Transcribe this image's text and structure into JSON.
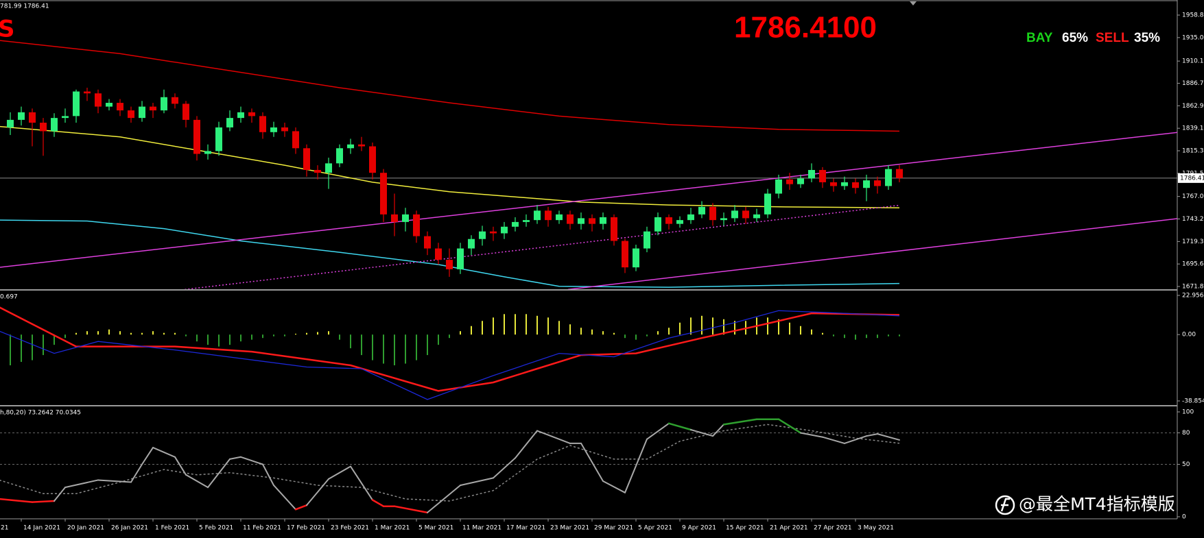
{
  "chart_data": [
    {
      "type": "candlestick",
      "header": "781.99 1786.41",
      "annotations": [
        {
          "text": "S",
          "color": "#ff0000"
        },
        {
          "text": "1786.4100",
          "color": "#ff0000"
        }
      ],
      "signals": [
        {
          "name": "BAY",
          "color": "#19d419",
          "label": "65%"
        },
        {
          "name": "SELL",
          "color": "#ff1a1a",
          "label": "35%"
        }
      ],
      "price": {
        "value": 1786.41,
        "label": "1786.41"
      },
      "bull_color": "#2df07c",
      "bear_color": "#e60000",
      "open": [
        1840,
        1848,
        1856,
        1845,
        1836,
        1850,
        1852,
        1878,
        1876,
        1862,
        1866,
        1858,
        1850,
        1862,
        1858,
        1872,
        1865,
        1848,
        1812,
        1815,
        1840,
        1850,
        1856,
        1852,
        1835,
        1840,
        1836,
        1818,
        1795,
        1792,
        1802,
        1818,
        1822,
        1820,
        1792,
        1748,
        1740,
        1748,
        1725,
        1712,
        1700,
        1690,
        1712,
        1722,
        1730,
        1728,
        1735,
        1740,
        1742,
        1752,
        1742,
        1748,
        1738,
        1744,
        1738,
        1745,
        1720,
        1692,
        1712,
        1730,
        1745,
        1738,
        1742,
        1748,
        1756,
        1742,
        1744,
        1752,
        1744,
        1748,
        1770,
        1785,
        1780,
        1786,
        1795,
        1782,
        1778,
        1782,
        1776,
        1784,
        1778,
        1796
      ],
      "high": [
        1856,
        1862,
        1860,
        1850,
        1855,
        1860,
        1880,
        1882,
        1880,
        1870,
        1870,
        1862,
        1868,
        1866,
        1880,
        1876,
        1868,
        1852,
        1822,
        1846,
        1858,
        1862,
        1860,
        1856,
        1846,
        1845,
        1840,
        1822,
        1800,
        1808,
        1822,
        1828,
        1830,
        1824,
        1796,
        1770,
        1755,
        1752,
        1730,
        1718,
        1712,
        1718,
        1726,
        1736,
        1735,
        1740,
        1745,
        1748,
        1758,
        1756,
        1752,
        1752,
        1750,
        1748,
        1750,
        1748,
        1722,
        1716,
        1735,
        1750,
        1748,
        1746,
        1755,
        1762,
        1760,
        1750,
        1758,
        1756,
        1754,
        1775,
        1790,
        1792,
        1790,
        1802,
        1798,
        1786,
        1788,
        1786,
        1790,
        1788,
        1800,
        1800
      ],
      "low": [
        1832,
        1842,
        1820,
        1810,
        1830,
        1845,
        1845,
        1868,
        1855,
        1858,
        1852,
        1845,
        1846,
        1850,
        1855,
        1860,
        1840,
        1805,
        1806,
        1810,
        1836,
        1845,
        1845,
        1828,
        1830,
        1830,
        1812,
        1788,
        1785,
        1775,
        1798,
        1812,
        1815,
        1785,
        1740,
        1725,
        1730,
        1718,
        1705,
        1695,
        1682,
        1685,
        1705,
        1715,
        1720,
        1722,
        1730,
        1735,
        1738,
        1735,
        1738,
        1732,
        1732,
        1730,
        1732,
        1715,
        1686,
        1688,
        1708,
        1726,
        1732,
        1734,
        1738,
        1744,
        1736,
        1736,
        1740,
        1738,
        1740,
        1744,
        1765,
        1774,
        1776,
        1782,
        1776,
        1772,
        1774,
        1770,
        1762,
        1770,
        1774,
        1781.99
      ],
      "close": [
        1848,
        1856,
        1845,
        1836,
        1850,
        1852,
        1878,
        1876,
        1862,
        1866,
        1858,
        1850,
        1862,
        1858,
        1872,
        1865,
        1848,
        1812,
        1815,
        1840,
        1850,
        1856,
        1852,
        1835,
        1840,
        1836,
        1818,
        1795,
        1792,
        1802,
        1818,
        1822,
        1820,
        1792,
        1748,
        1740,
        1748,
        1725,
        1712,
        1700,
        1690,
        1712,
        1722,
        1730,
        1728,
        1735,
        1740,
        1742,
        1752,
        1742,
        1748,
        1738,
        1744,
        1738,
        1745,
        1720,
        1692,
        1712,
        1730,
        1745,
        1738,
        1742,
        1748,
        1756,
        1742,
        1744,
        1752,
        1744,
        1748,
        1770,
        1785,
        1780,
        1786,
        1795,
        1782,
        1778,
        1782,
        1776,
        1784,
        1778,
        1796,
        1786.41
      ],
      "overlays": [
        {
          "color": "#e00000",
          "style": "solid",
          "x": [
            -1,
            10,
            20,
            30,
            40,
            50,
            60,
            70,
            81
          ],
          "values": [
            1932,
            1918,
            1900,
            1882,
            1866,
            1852,
            1843,
            1838,
            1836
          ]
        },
        {
          "color": "#f2ee3c",
          "style": "solid",
          "x": [
            -1,
            10,
            20,
            25,
            33,
            40,
            52,
            60,
            70,
            81
          ],
          "values": [
            1841,
            1830,
            1810,
            1800,
            1782,
            1772,
            1761,
            1758,
            1756,
            1755
          ]
        },
        {
          "color": "#3fd8f0",
          "style": "solid",
          "x": [
            -1,
            7,
            14,
            21,
            30,
            39,
            45,
            50,
            60,
            70,
            81
          ],
          "values": [
            1742,
            1741,
            1733,
            1720,
            1708,
            1695,
            1682,
            1672,
            1671,
            1673,
            1675
          ]
        },
        {
          "color": "#e040e0",
          "style": "solid",
          "x": [
            -1,
            108
          ],
          "values": [
            1692,
            1837
          ]
        },
        {
          "color": "#e040e0",
          "style": "dotted",
          "x": [
            15.9,
            81
          ],
          "values": [
            1668.6,
            1757.7
          ]
        },
        {
          "color": "#e040e0",
          "style": "solid",
          "x": [
            50.8,
            108
          ],
          "values": [
            1668.6,
            1745.8
          ]
        }
      ],
      "xlim": [
        -0.9375,
        106.3125
      ],
      "xticks": [
        {
          "value": -3,
          "label": "21"
        },
        {
          "value": 1,
          "label": "14 Jan 2021"
        },
        {
          "value": 5,
          "label": "20 Jan 2021"
        },
        {
          "value": 9,
          "label": "26 Jan 2021"
        },
        {
          "value": 13,
          "label": "1 Feb 2021"
        },
        {
          "value": 17,
          "label": "5 Feb 2021"
        },
        {
          "value": 21,
          "label": "11 Feb 2021"
        },
        {
          "value": 25,
          "label": "17 Feb 2021"
        },
        {
          "value": 29,
          "label": "23 Feb 2021"
        },
        {
          "value": 33,
          "label": "1 Mar 2021"
        },
        {
          "value": 37,
          "label": "5 Mar 2021"
        },
        {
          "value": 41,
          "label": "11 Mar 2021"
        },
        {
          "value": 45,
          "label": "17 Mar 2021"
        },
        {
          "value": 49,
          "label": "23 Mar 2021"
        },
        {
          "value": 53,
          "label": "29 Mar 2021"
        },
        {
          "value": 57,
          "label": "5 Apr 2021"
        },
        {
          "value": 61,
          "label": "9 Apr 2021"
        },
        {
          "value": 65,
          "label": "15 Apr 2021"
        },
        {
          "value": 69,
          "label": "21 Apr 2021"
        },
        {
          "value": 73,
          "label": "27 Apr 2021"
        },
        {
          "value": 77,
          "label": "3 May 2021"
        }
      ],
      "ylim": [
        1671.8,
        1958.8
      ],
      "yticks": [
        {
          "value": 1958.8,
          "label": "1958.80"
        },
        {
          "value": 1935,
          "label": "1935.00"
        },
        1910.15,
        {
          "value": 1886.7,
          "label": "1886.70"
        },
        {
          "value": 1862.9,
          "label": "1862.90"
        },
        {
          "value": 1839.1,
          "label": "1839.10"
        },
        {
          "value": 1815.3,
          "label": "1815.30"
        },
        {
          "value": 1791.5,
          "label": "1791.50"
        },
        {
          "value": 1767,
          "label": "1767.00"
        },
        {
          "value": 1743.2,
          "label": "1743.20"
        },
        1719.35,
        {
          "value": 1695.6,
          "label": "1695.60"
        },
        {
          "value": 1671.8,
          "label": "1671.80"
        }
      ]
    },
    {
      "type": "macd",
      "header": "0.697",
      "histogram": {
        "pos_color": "#e8e83a",
        "neg_color": "#2f9e2f",
        "values": [
          -18,
          -16,
          -15,
          -12,
          -6,
          -2,
          1,
          2,
          2,
          3,
          2,
          1,
          1,
          2,
          1,
          1,
          -1,
          -4,
          -6,
          -7,
          -6,
          -4,
          -3,
          -2,
          -1,
          -1,
          0.5,
          1,
          1.5,
          2,
          -3,
          -8,
          -12,
          -15,
          -17,
          -18,
          -17,
          -15,
          -12,
          -6,
          -2,
          2,
          5,
          8,
          10,
          12,
          12,
          12,
          11,
          10,
          8,
          6,
          4,
          3,
          2,
          1,
          -2,
          -3,
          -1,
          2,
          4,
          7,
          10,
          11,
          10,
          9,
          8,
          8,
          10,
          10,
          9,
          7,
          5,
          3,
          1,
          -1,
          -2,
          -3,
          -2,
          -2,
          -1,
          -1
        ]
      },
      "series": [
        {
          "color": "#ff1a1a",
          "width": 2.5,
          "x": [
            -1,
            6,
            15,
            22,
            31,
            39,
            44,
            48,
            52,
            57,
            63,
            68,
            73,
            77,
            81
          ],
          "values": [
            16,
            -7,
            -7,
            -10,
            -18,
            -33,
            -28,
            -20,
            -12,
            -11,
            -2,
            5,
            12.5,
            12,
            11.5
          ]
        },
        {
          "color": "#1c28d8",
          "width": 1.3,
          "x": [
            -1,
            4,
            8,
            15,
            27,
            32,
            38,
            44,
            50,
            55,
            60,
            66,
            70,
            74,
            81
          ],
          "values": [
            2,
            -11,
            -4,
            -9,
            -19,
            -20,
            -38,
            -24,
            -11,
            -13,
            -2,
            7,
            14,
            13,
            11
          ]
        }
      ],
      "ylim": [
        -38.854,
        22.956
      ],
      "yticks": [
        22.956,
        {
          "value": 0,
          "label": "0.00"
        },
        -38.854
      ]
    },
    {
      "type": "stochastic",
      "header": "h,80,20) 73.2642 70.0345",
      "series": [
        {
          "color": "#a8a8a8",
          "low_color": "#ff1a1a",
          "high_color": "#2fa02f",
          "style": "solid",
          "x": [
            -1,
            2,
            4,
            5,
            8,
            11,
            12,
            13,
            15,
            16,
            18,
            20,
            21,
            23,
            24,
            26,
            27,
            29,
            31,
            33,
            34,
            35,
            38,
            41,
            44,
            46,
            48,
            51,
            52,
            54,
            56,
            58,
            60,
            62,
            64,
            65,
            68,
            70,
            72,
            74,
            76,
            78,
            79,
            81
          ],
          "values": [
            17,
            14,
            15,
            28,
            35,
            33,
            50,
            66,
            57,
            40,
            28,
            55,
            57,
            50,
            30,
            7,
            11,
            36,
            48,
            16,
            10,
            10,
            4,
            30,
            37,
            56,
            82,
            70,
            70,
            34,
            23,
            74,
            89,
            83,
            77,
            88,
            93,
            93,
            80,
            76,
            70,
            77,
            79,
            73.2642
          ]
        },
        {
          "color": "#8a8a8a",
          "style": "dashed",
          "x": [
            -1,
            3,
            6,
            10,
            14,
            17,
            20,
            24,
            28,
            32,
            36,
            40,
            44,
            48,
            51,
            55,
            58,
            61,
            65,
            69,
            73,
            77,
            81
          ],
          "values": [
            35,
            22,
            22,
            33,
            45,
            40,
            42,
            37,
            30,
            28,
            17,
            15,
            25,
            55,
            68,
            55,
            55,
            72,
            82,
            88,
            82,
            75,
            70.0345
          ]
        }
      ],
      "oversold": 20,
      "overbought": 80,
      "levels": [
        80,
        50
      ],
      "ylim": [
        0,
        100
      ],
      "yticks": [
        100,
        80,
        50,
        0
      ]
    }
  ],
  "watermark": "@最全MT4指标模版"
}
